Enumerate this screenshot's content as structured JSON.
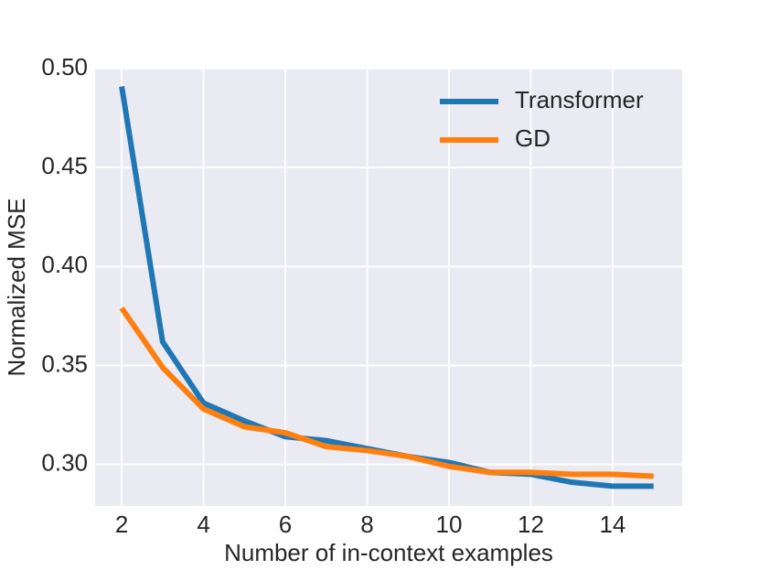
{
  "chart_data": {
    "type": "line",
    "x_label": "Number of in-context examples",
    "y_label": "Normalized MSE",
    "x": [
      2,
      3,
      4,
      5,
      6,
      7,
      8,
      9,
      10,
      11,
      12,
      13,
      14,
      15
    ],
    "series": [
      {
        "name": "Transformer",
        "color": "#1f77b4",
        "values": [
          0.491,
          0.362,
          0.331,
          0.322,
          0.314,
          0.312,
          0.308,
          0.304,
          0.301,
          0.296,
          0.295,
          0.291,
          0.289,
          0.289
        ]
      },
      {
        "name": "GD",
        "color": "#ff7f0e",
        "values": [
          0.379,
          0.349,
          0.328,
          0.319,
          0.316,
          0.309,
          0.307,
          0.304,
          0.299,
          0.296,
          0.296,
          0.295,
          0.295,
          0.294
        ]
      }
    ],
    "xlim": [
      1.35,
      15.7
    ],
    "ylim": [
      0.279,
      0.5
    ],
    "xticks": [
      2,
      4,
      6,
      8,
      10,
      12,
      14
    ],
    "yticks": [
      {
        "value": 0.3,
        "label": "0.30"
      },
      {
        "value": 0.35,
        "label": "0.35"
      },
      {
        "value": 0.4,
        "label": "0.40"
      },
      {
        "value": 0.45,
        "label": "0.45"
      },
      {
        "value": 0.5,
        "label": "0.50"
      }
    ],
    "grid": true,
    "legend": "upper-right"
  }
}
